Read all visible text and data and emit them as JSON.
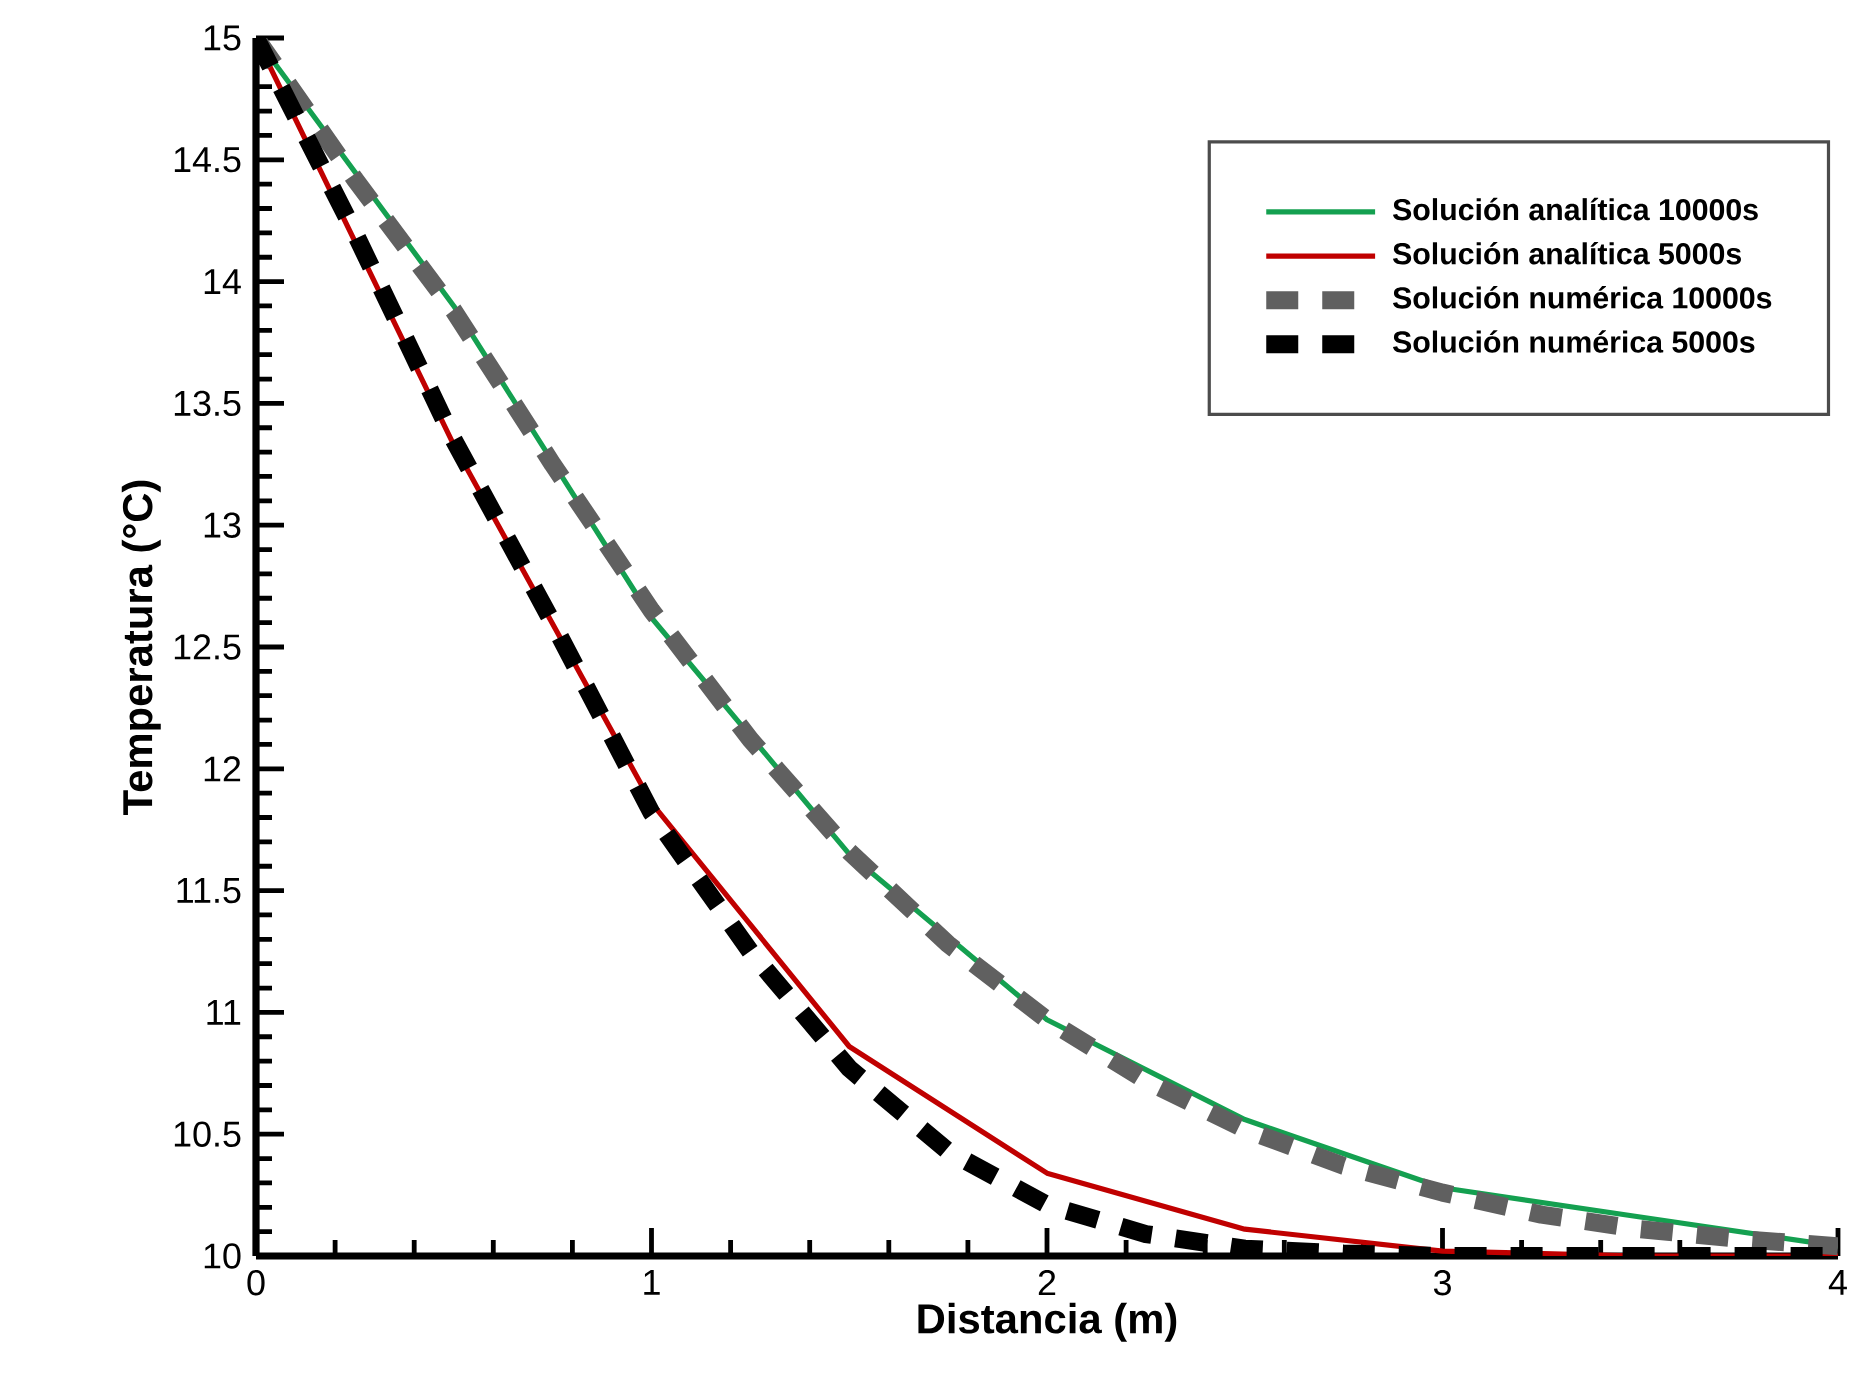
{
  "chart_data": {
    "type": "line",
    "xlabel": "Distancia (m)",
    "ylabel": "Temperatura (°C)",
    "xlim": [
      0,
      4
    ],
    "ylim": [
      10,
      15
    ],
    "xticks": [
      0,
      1,
      2,
      3,
      4
    ],
    "yticks": [
      10,
      10.5,
      11,
      11.5,
      12,
      12.5,
      13,
      13.5,
      14,
      14.5,
      15
    ],
    "grid": false,
    "legend": "top right",
    "marker": "none",
    "series": [
      {
        "name": "Solución analítica 10000s",
        "color": "#14a050",
        "line_style": "solid",
        "x": [
          0,
          0.5,
          1,
          1.5,
          2,
          2.5,
          3,
          3.5,
          4
        ],
        "values": [
          15,
          13.9,
          12.62,
          11.65,
          10.97,
          10.56,
          10.28,
          10.16,
          10.04
        ]
      },
      {
        "name": "Solución analítica 5000s",
        "color": "#c00000",
        "line_style": "solid",
        "x": [
          0,
          0.5,
          1,
          1.5,
          2,
          2.5,
          3,
          3.5,
          4
        ],
        "values": [
          15,
          13.33,
          11.86,
          10.86,
          10.34,
          10.11,
          10.02,
          10.0,
          10.0
        ]
      },
      {
        "name": "Solución numérica 10000s",
        "color": "#606060",
        "line_style": "dashed",
        "x": [
          0,
          0.25,
          0.5,
          0.75,
          1,
          1.25,
          1.5,
          1.75,
          2,
          2.25,
          2.5,
          2.75,
          3,
          3.25,
          3.5,
          3.75,
          4
        ],
        "values": [
          15,
          14.42,
          13.88,
          13.25,
          12.65,
          12.12,
          11.66,
          11.28,
          10.97,
          10.72,
          10.52,
          10.37,
          10.26,
          10.17,
          10.11,
          10.07,
          10.04
        ]
      },
      {
        "name": "Solución numérica 5000s",
        "color": "#000000",
        "line_style": "dashed",
        "x": [
          0,
          0.25,
          0.5,
          0.75,
          1,
          1.25,
          1.5,
          1.75,
          2,
          2.25,
          2.5,
          2.75,
          3,
          3.25,
          3.5,
          3.75,
          4
        ],
        "values": [
          15,
          14.2,
          13.35,
          12.6,
          11.82,
          11.25,
          10.77,
          10.43,
          10.21,
          10.09,
          10.03,
          10.01,
          10.0,
          10.0,
          10.0,
          10.0,
          10.0
        ]
      }
    ]
  }
}
